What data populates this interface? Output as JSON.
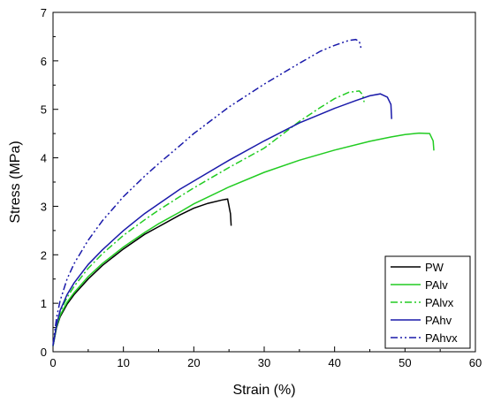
{
  "chart_data": {
    "type": "line",
    "xlabel": "Strain (%)",
    "ylabel": "Stress (MPa)",
    "xlim": [
      0,
      60
    ],
    "ylim": [
      0,
      7
    ],
    "xticks": [
      0,
      10,
      20,
      30,
      40,
      50,
      60
    ],
    "yticks": [
      0,
      1,
      2,
      3,
      4,
      5,
      6,
      7
    ],
    "x_minor_step": 5,
    "y_minor_step": 0.5,
    "grid": false,
    "legend_position": "bottom-right",
    "series": [
      {
        "name": "PW",
        "color": "#000000",
        "dash": "solid",
        "points": [
          [
            0,
            0.12
          ],
          [
            0.5,
            0.5
          ],
          [
            1,
            0.72
          ],
          [
            2,
            0.98
          ],
          [
            3,
            1.18
          ],
          [
            5,
            1.5
          ],
          [
            7,
            1.78
          ],
          [
            10,
            2.12
          ],
          [
            13,
            2.42
          ],
          [
            15,
            2.58
          ],
          [
            18,
            2.82
          ],
          [
            20,
            2.96
          ],
          [
            22,
            3.06
          ],
          [
            24,
            3.13
          ],
          [
            24.8,
            3.15
          ],
          [
            25.2,
            2.85
          ],
          [
            25.3,
            2.6
          ]
        ]
      },
      {
        "name": "PAlv",
        "color": "#22cc22",
        "dash": "solid",
        "points": [
          [
            0,
            0.12
          ],
          [
            0.5,
            0.52
          ],
          [
            1,
            0.75
          ],
          [
            2,
            1.02
          ],
          [
            3,
            1.22
          ],
          [
            5,
            1.55
          ],
          [
            7,
            1.82
          ],
          [
            10,
            2.16
          ],
          [
            13,
            2.46
          ],
          [
            15,
            2.64
          ],
          [
            18,
            2.88
          ],
          [
            20,
            3.05
          ],
          [
            25,
            3.4
          ],
          [
            30,
            3.7
          ],
          [
            35,
            3.95
          ],
          [
            40,
            4.16
          ],
          [
            45,
            4.34
          ],
          [
            48,
            4.43
          ],
          [
            50,
            4.48
          ],
          [
            52,
            4.51
          ],
          [
            53.5,
            4.5
          ],
          [
            54,
            4.35
          ],
          [
            54.1,
            4.15
          ]
        ]
      },
      {
        "name": "PAlvx",
        "color": "#22cc22",
        "dash": "dashdot",
        "points": [
          [
            0,
            0.12
          ],
          [
            0.5,
            0.55
          ],
          [
            1,
            0.82
          ],
          [
            2,
            1.12
          ],
          [
            3,
            1.35
          ],
          [
            5,
            1.72
          ],
          [
            7,
            2.02
          ],
          [
            10,
            2.4
          ],
          [
            13,
            2.72
          ],
          [
            15,
            2.92
          ],
          [
            18,
            3.2
          ],
          [
            20,
            3.38
          ],
          [
            25,
            3.8
          ],
          [
            30,
            4.2
          ],
          [
            35,
            4.75
          ],
          [
            38,
            5.04
          ],
          [
            40,
            5.22
          ],
          [
            42,
            5.35
          ],
          [
            43.5,
            5.38
          ],
          [
            44,
            5.3
          ],
          [
            44.2,
            5.15
          ]
        ]
      },
      {
        "name": "PAhv",
        "color": "#1a1aaa",
        "dash": "solid",
        "points": [
          [
            0,
            0.12
          ],
          [
            0.5,
            0.55
          ],
          [
            1,
            0.85
          ],
          [
            2,
            1.18
          ],
          [
            3,
            1.42
          ],
          [
            5,
            1.8
          ],
          [
            7,
            2.1
          ],
          [
            10,
            2.5
          ],
          [
            13,
            2.85
          ],
          [
            15,
            3.05
          ],
          [
            18,
            3.35
          ],
          [
            20,
            3.52
          ],
          [
            25,
            3.95
          ],
          [
            30,
            4.35
          ],
          [
            35,
            4.72
          ],
          [
            40,
            5.02
          ],
          [
            43,
            5.18
          ],
          [
            45,
            5.28
          ],
          [
            46.5,
            5.32
          ],
          [
            47.5,
            5.25
          ],
          [
            48,
            5.1
          ],
          [
            48.1,
            4.8
          ]
        ]
      },
      {
        "name": "PAhvx",
        "color": "#1a1aaa",
        "dash": "dashdotdot",
        "points": [
          [
            0,
            0.15
          ],
          [
            0.5,
            0.7
          ],
          [
            1,
            1.05
          ],
          [
            2,
            1.5
          ],
          [
            3,
            1.82
          ],
          [
            5,
            2.3
          ],
          [
            7,
            2.7
          ],
          [
            10,
            3.2
          ],
          [
            13,
            3.62
          ],
          [
            15,
            3.88
          ],
          [
            18,
            4.25
          ],
          [
            20,
            4.5
          ],
          [
            25,
            5.05
          ],
          [
            30,
            5.52
          ],
          [
            35,
            5.95
          ],
          [
            38,
            6.2
          ],
          [
            40,
            6.32
          ],
          [
            42,
            6.42
          ],
          [
            43,
            6.44
          ],
          [
            43.5,
            6.4
          ],
          [
            43.7,
            6.3
          ],
          [
            43.8,
            6.22
          ]
        ]
      }
    ]
  }
}
